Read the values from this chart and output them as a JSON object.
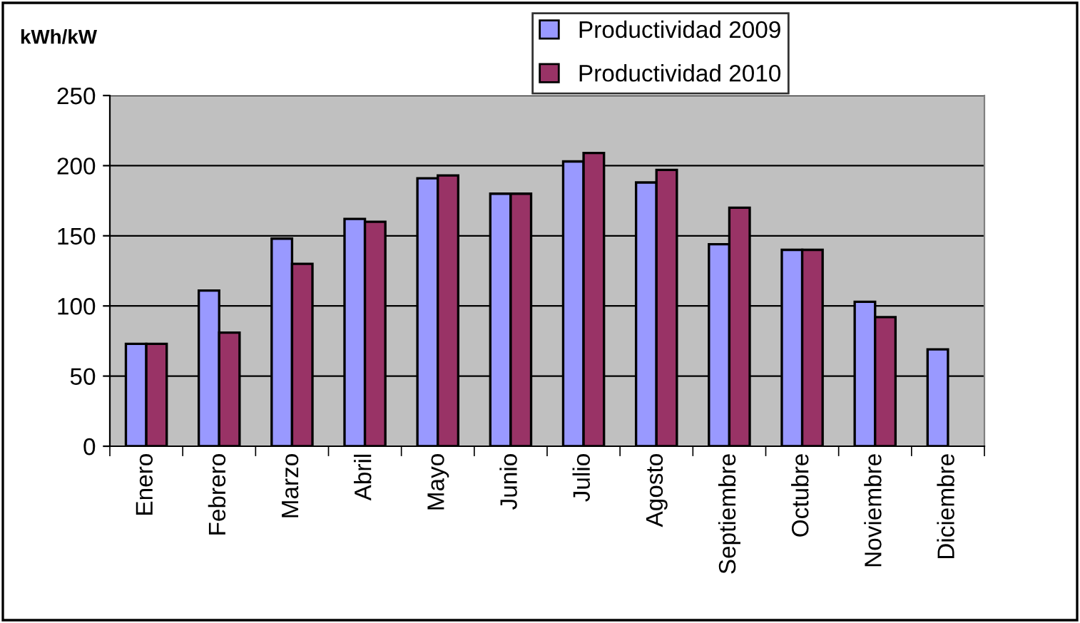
{
  "chart_data": {
    "type": "bar",
    "ylabel": "kWh/kW",
    "categories": [
      "Enero",
      "Febrero",
      "Marzo",
      "Abril",
      "Mayo",
      "Junio",
      "Julio",
      "Agosto",
      "Septiembre",
      "Octubre",
      "Noviembre",
      "Diciembre"
    ],
    "series": [
      {
        "name": "Productividad 2009",
        "color": "#9999ff",
        "values": [
          73,
          111,
          148,
          162,
          191,
          180,
          203,
          188,
          144,
          140,
          103,
          69
        ]
      },
      {
        "name": "Productividad 2010",
        "color": "#993366",
        "values": [
          73,
          81,
          130,
          160,
          193,
          180,
          209,
          197,
          170,
          140,
          92,
          null
        ]
      }
    ],
    "ylim": [
      0,
      250
    ],
    "yticks": [
      0,
      50,
      100,
      150,
      200,
      250
    ],
    "grid": "y",
    "legend": "top"
  }
}
